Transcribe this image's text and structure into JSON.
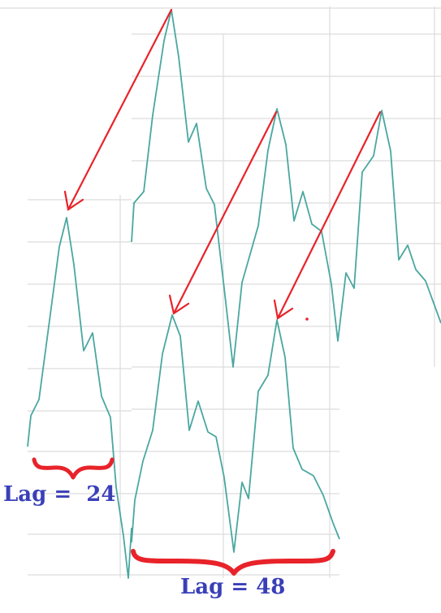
{
  "colors": {
    "series_line": "#4aa7a0",
    "arrow": "#e8232a",
    "brace": "#e8232a",
    "grid": "#d9d9d9",
    "label": "#3a3fb8"
  },
  "labels": {
    "lag_24": "Lag =  24",
    "lag_48": "Lag = 48"
  }
}
